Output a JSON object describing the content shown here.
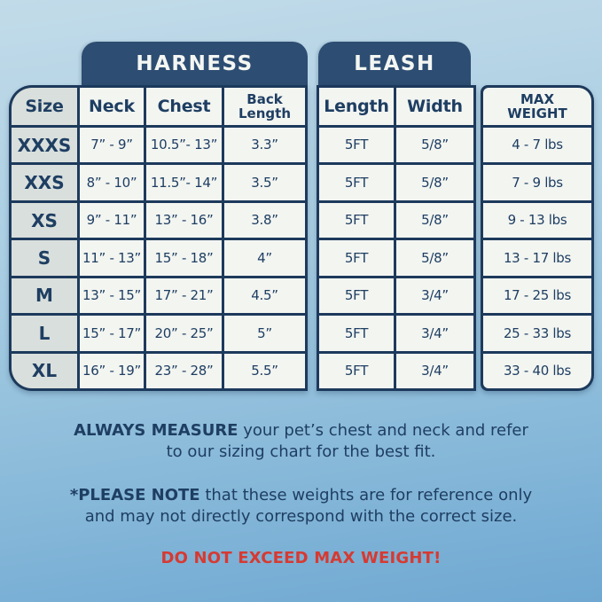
{
  "title": "Pet harness and leash size chart",
  "theme": {
    "background_top": "#c2dbe9",
    "background_bottom": "#6fa8d2",
    "navy_text": "#1e3e62",
    "border": "#1d3a5c",
    "badge_fill": "#2d4d72",
    "badge_text": "#f4f6f2",
    "cell_fill": "#f3f5f1",
    "size_column_fill": "#d9dfdc",
    "warning_red": "#d63a32"
  },
  "harness": {
    "badge_label": "HARNESS",
    "columns": [
      "Size",
      "Neck",
      "Chest",
      "Back Length"
    ]
  },
  "leash": {
    "badge_label": "LEASH",
    "columns": [
      "Length",
      "Width"
    ]
  },
  "weight": {
    "header": "MAX WEIGHT"
  },
  "rows": [
    {
      "size": "XXXS",
      "neck": "7” - 9”",
      "chest": "10.5”- 13”",
      "back": "3.3”",
      "length": "5FT",
      "width": "5/8”",
      "max_weight": "4 - 7 lbs"
    },
    {
      "size": "XXS",
      "neck": "8” - 10”",
      "chest": "11.5”- 14”",
      "back": "3.5”",
      "length": "5FT",
      "width": "5/8”",
      "max_weight": "7 - 9 lbs"
    },
    {
      "size": "XS",
      "neck": "9” - 11”",
      "chest": "13” - 16”",
      "back": "3.8”",
      "length": "5FT",
      "width": "5/8”",
      "max_weight": "9 - 13 lbs"
    },
    {
      "size": "S",
      "neck": "11” - 13”",
      "chest": "15” - 18”",
      "back": "4”",
      "length": "5FT",
      "width": "5/8”",
      "max_weight": "13 - 17 lbs"
    },
    {
      "size": "M",
      "neck": "13” - 15”",
      "chest": "17” - 21”",
      "back": "4.5”",
      "length": "5FT",
      "width": "3/4”",
      "max_weight": "17 - 25 lbs"
    },
    {
      "size": "L",
      "neck": "15” - 17”",
      "chest": "20” - 25”",
      "back": "5”",
      "length": "5FT",
      "width": "3/4”",
      "max_weight": "25 - 33 lbs"
    },
    {
      "size": "XL",
      "neck": "16” - 19”",
      "chest": "23” - 28”",
      "back": "5.5”",
      "length": "5FT",
      "width": "3/4”",
      "max_weight": "33 - 40 lbs"
    }
  ],
  "footer": {
    "measure": {
      "bold": "ALWAYS MEASURE",
      "line1": " your pet’s chest and neck and refer",
      "line2": "to our sizing chart for the best fit."
    },
    "note": {
      "bold": "*PLEASE NOTE",
      "line1": " that these weights are for reference only",
      "line2": "and may not directly correspond with the correct size."
    },
    "warning": "DO NOT EXCEED MAX WEIGHT!"
  }
}
